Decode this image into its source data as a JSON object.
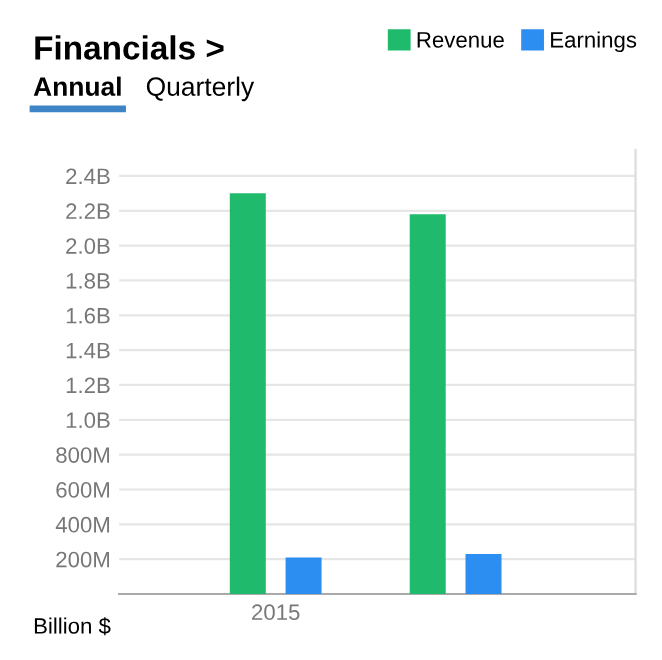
{
  "chart_data": {
    "type": "bar",
    "title": "Financials >",
    "annotations": [
      "Annual",
      "Quarterly",
      "Billion $"
    ],
    "categories": [
      "2015",
      null
    ],
    "series": [
      {
        "name": "Revenue",
        "color": "#1fba6b",
        "values": [
          2300000000,
          2180000000
        ]
      },
      {
        "name": "Earnings",
        "color": "#2b8ef0",
        "values": [
          210000000,
          230000000
        ]
      }
    ],
    "ylim": [
      0,
      2550000000
    ],
    "yticks": [
      {
        "value": 200000000,
        "label": "200M"
      },
      {
        "value": 400000000,
        "label": "400M"
      },
      {
        "value": 600000000,
        "label": "600M"
      },
      {
        "value": 800000000,
        "label": "800M"
      },
      {
        "value": 1000000000,
        "label": "1.0B"
      },
      {
        "value": 1200000000,
        "label": "1.2B"
      },
      {
        "value": 1400000000,
        "label": "1.4B"
      },
      {
        "value": 1600000000,
        "label": "1.6B"
      },
      {
        "value": 1800000000,
        "label": "1.8B"
      },
      {
        "value": 2000000000,
        "label": "2.0B"
      },
      {
        "value": 2200000000,
        "label": "2.2B"
      },
      {
        "value": 2400000000,
        "label": "2.4B"
      }
    ],
    "grid": "y",
    "legend": "top right"
  }
}
